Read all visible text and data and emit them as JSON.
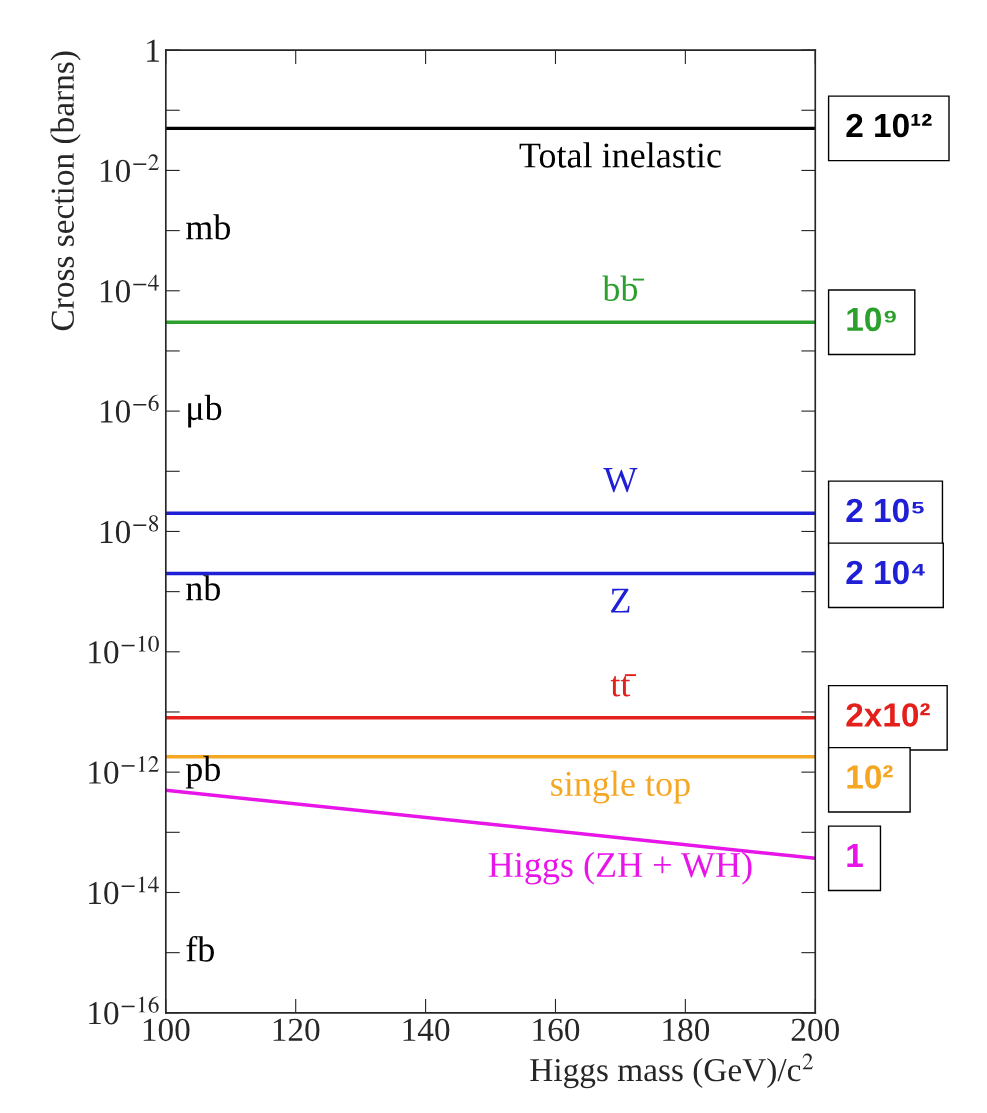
{
  "chart_data": {
    "type": "line",
    "xlabel": "Higgs mass (GeV)/c$^{2}$",
    "ylabel": "Cross section (barns)",
    "log": "y",
    "grid": false,
    "legend": false,
    "marker": "none",
    "line_style": "solid",
    "x": [
      100,
      200
    ],
    "series": [
      {
        "color": "#000000",
        "values": [
          0.05,
          0.05
        ]
      },
      {
        "color": "#2ca02c",
        "values": [
          3e-05,
          3e-05
        ]
      },
      {
        "color": "#1f1fd6",
        "values": [
          2e-08,
          2e-08
        ]
      },
      {
        "color": "#1f1fd6",
        "values": [
          2e-09,
          2e-09
        ]
      },
      {
        "color": "#e3201b",
        "values": [
          8e-12,
          8e-12
        ]
      },
      {
        "color": "#f5a623",
        "values": [
          1.8e-12,
          1.8e-12
        ]
      },
      {
        "color": "#e815e8",
        "values": [
          5e-13,
          3.7e-14
        ]
      }
    ],
    "xlim": [
      100,
      200
    ],
    "xticks": [
      100,
      120,
      140,
      160,
      180,
      200
    ],
    "ylim": [
      1e-16,
      1
    ],
    "yticks": [
      1,
      {
        "value": 0.1,
        "label": null
      },
      {
        "value": 0.01,
        "label": "10$^{−2}$"
      },
      {
        "value": 0.001,
        "label": null
      },
      {
        "value": 0.0001,
        "label": "10$^{−4}$"
      },
      {
        "value": 1e-05,
        "label": null
      },
      {
        "value": 1e-06,
        "label": "10$^{−6}$"
      },
      {
        "value": 1e-07,
        "label": null
      },
      {
        "value": 1e-08,
        "label": "10$^{−8}$"
      },
      {
        "value": 1e-09,
        "label": null
      },
      {
        "value": 1e-10,
        "label": "10$^{−10}$"
      },
      {
        "value": 1e-11,
        "label": null
      },
      {
        "value": 1e-12,
        "label": "10$^{−12}$"
      },
      {
        "value": 1e-13,
        "label": null
      },
      {
        "value": 1e-14,
        "label": "10$^{−14}$"
      },
      {
        "value": 1e-15,
        "label": null
      },
      {
        "value": 1e-16,
        "label": "10$^{−16}$"
      }
    ],
    "annotations": [
      "Total inelastic",
      "bb̄",
      "W",
      "Z",
      "tt̄",
      "single top",
      "Higgs (ZH + WH)",
      "2 10¹²",
      "10⁹",
      "2 10⁵",
      "2 10⁴",
      "2x10²",
      "10²",
      "1",
      "mb",
      "μb",
      "nb",
      "pb",
      "fb"
    ]
  }
}
